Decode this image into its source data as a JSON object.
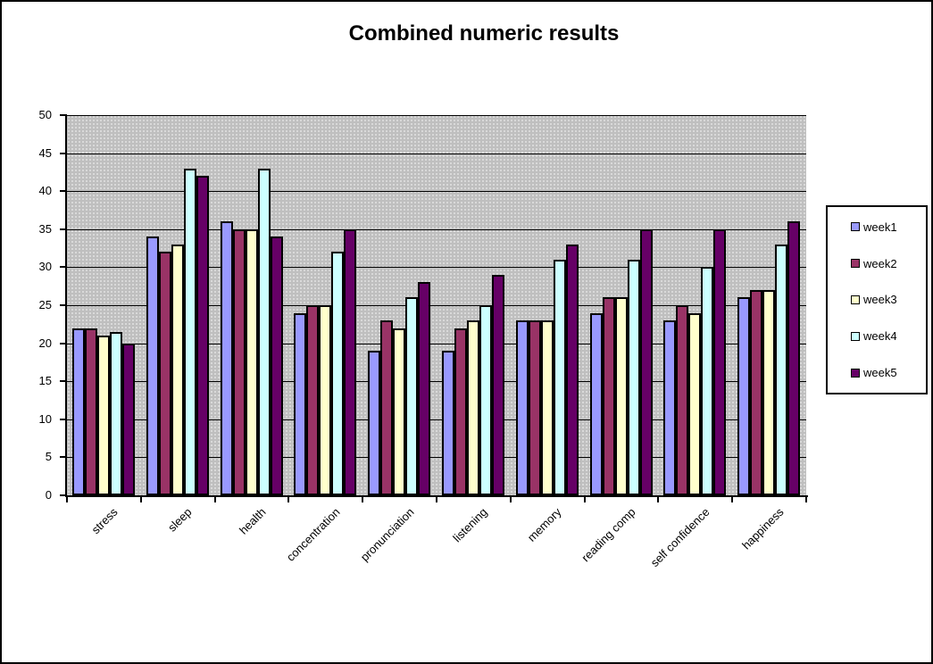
{
  "title": "Combined numeric results",
  "chart_data": {
    "type": "bar",
    "title": "Combined numeric results",
    "categories": [
      "stress",
      "sleep",
      "health",
      "concentration",
      "pronunciation",
      "listening",
      "memory",
      "reading comp",
      "self confidence",
      "happiness"
    ],
    "series": [
      {
        "name": "week1",
        "color": "#9999FF",
        "values": [
          22,
          34,
          36,
          24,
          19,
          19,
          23,
          24,
          23,
          26
        ]
      },
      {
        "name": "week2",
        "color": "#993366",
        "values": [
          22,
          32,
          35,
          25,
          23,
          22,
          23,
          26,
          25,
          27
        ]
      },
      {
        "name": "week3",
        "color": "#FFFFCC",
        "values": [
          21,
          33,
          35,
          25,
          22,
          23,
          23,
          26,
          24,
          27
        ]
      },
      {
        "name": "week4",
        "color": "#CCFFFF",
        "values": [
          21.5,
          43,
          43,
          32,
          26,
          25,
          31,
          31,
          30,
          33
        ]
      },
      {
        "name": "week5",
        "color": "#660066",
        "values": [
          20,
          42,
          34,
          35,
          28,
          29,
          33,
          35,
          35,
          36
        ]
      }
    ],
    "xlabel": "",
    "ylabel": "",
    "ylim": [
      0,
      50
    ],
    "ytick_step": 5,
    "yticks": [
      0,
      5,
      10,
      15,
      20,
      25,
      30,
      35,
      40,
      45,
      50
    ],
    "grid": true,
    "gridline_color": "#000000",
    "plot_background": "#bfbfbf",
    "legend_position": "right",
    "legend_entries": [
      "week1",
      "week2",
      "week3",
      "week4",
      "week5"
    ],
    "bar_border_color": "#000000"
  }
}
